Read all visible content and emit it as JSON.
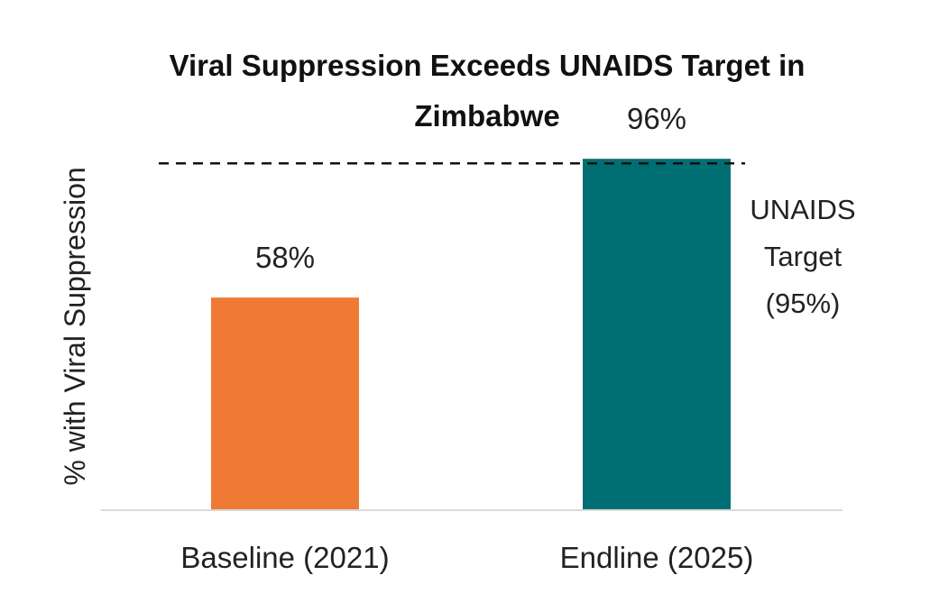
{
  "chart_data": {
    "type": "bar",
    "title_lines": [
      "Viral Suppression Exceeds UNAIDS Target in",
      "Zimbabwe"
    ],
    "ylabel": "% with Viral Suppression",
    "xlabel": "",
    "categories": [
      "Baseline (2021)",
      "Endline (2025)"
    ],
    "values": [
      58,
      96
    ],
    "data_labels": [
      "58%",
      "96%"
    ],
    "bar_colors": [
      "#EE7A35",
      "#006F73"
    ],
    "ylim": [
      0,
      100
    ],
    "grid": false,
    "reference_line": {
      "value": 95,
      "label_lines": [
        "UNAIDS",
        "Target",
        "(95%)"
      ],
      "style": "dashed",
      "color": "#111111"
    }
  }
}
